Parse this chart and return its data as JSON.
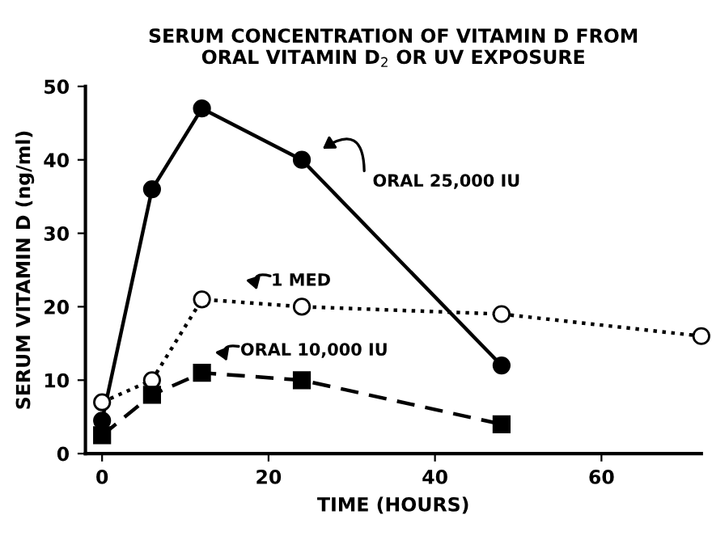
{
  "chart_data": {
    "type": "line",
    "title": "SERUM CONCENTRATION OF VITAMIN D FROM\nORAL VITAMIN D$_{2}$ OR UV EXPOSURE",
    "xlabel": "TIME (HOURS)",
    "ylabel": "SERUM VITAMIN D (ng/ml)",
    "xlim": [
      -2,
      72
    ],
    "xticks": [
      0,
      20,
      40,
      60
    ],
    "ylim": [
      0,
      50
    ],
    "yticks": [
      0,
      10,
      20,
      30,
      40,
      50
    ],
    "grid": false,
    "legend": false,
    "annotations": [
      "ORAL 25,000 IU",
      "1 MED",
      "ORAL 10,000 IU"
    ],
    "series": [
      {
        "color": "#000000",
        "marker": "circle",
        "line_style": "solid",
        "x": [
          0,
          6,
          12,
          24,
          48
        ],
        "values": [
          4.5,
          36,
          47,
          40,
          12
        ]
      },
      {
        "color": "#000000",
        "marker": "circle",
        "line_style": "dotted",
        "x": [
          0,
          6,
          12,
          24,
          48,
          72
        ],
        "values": [
          7,
          10,
          21,
          20,
          19,
          16
        ]
      },
      {
        "color": "#000000",
        "marker": "square",
        "line_style": "dashed",
        "x": [
          0,
          6,
          12,
          24,
          48
        ],
        "values": [
          2.5,
          8,
          11,
          10,
          4
        ]
      }
    ]
  }
}
